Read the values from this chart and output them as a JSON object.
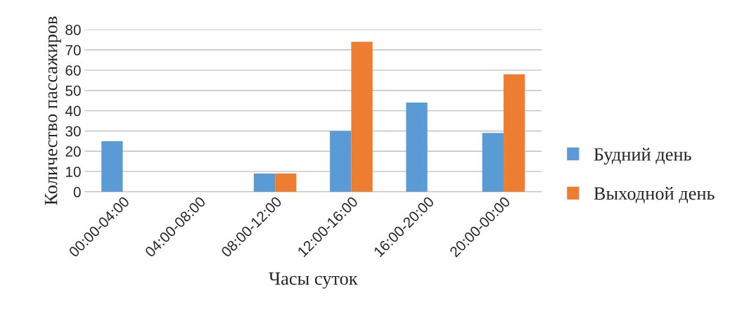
{
  "chart_data": {
    "type": "bar",
    "xlabel": "Часы суток",
    "ylabel": "Количество пассажиров",
    "categories": [
      "00:00-04:00",
      "04:00-08:00",
      "08:00-12:00",
      "12:00-16:00",
      "16:00-20:00",
      "20:00-00:00"
    ],
    "series": [
      {
        "name": "Будний день",
        "color": "#5b9bd5",
        "values": [
          25,
          0,
          9,
          30,
          44,
          29
        ]
      },
      {
        "name": "Выходной день",
        "color": "#ed7d31",
        "values": [
          0,
          0,
          9,
          74,
          0,
          58
        ]
      }
    ],
    "ylim": [
      0,
      80
    ],
    "yticks": [
      0,
      10,
      20,
      30,
      40,
      50,
      60,
      70,
      80
    ],
    "grid": "y",
    "legend": "right"
  }
}
